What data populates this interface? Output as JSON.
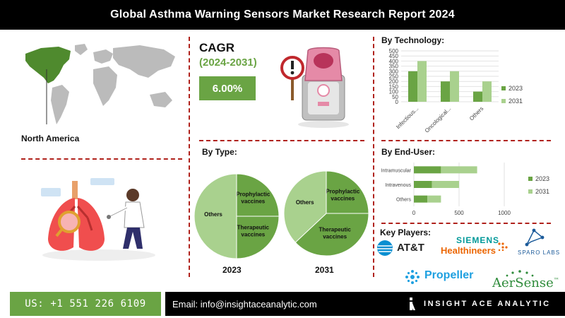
{
  "title": "Global  Asthma Warning Sensors Market Research Report 2024",
  "region": "North America",
  "cagr": {
    "label": "CAGR",
    "period": "(2024-2031)",
    "value": "6.00%"
  },
  "colors": {
    "dark_green": "#6aa444",
    "light_green": "#a9d18e",
    "accent_red": "#b0221c"
  },
  "chart_data": [
    {
      "type": "bar",
      "title": "By Technology:",
      "orientation": "vertical",
      "categories": [
        "Infectious...",
        "Oncological...",
        "Others"
      ],
      "series": [
        {
          "name": "2023",
          "values": [
            300,
            200,
            100
          ]
        },
        {
          "name": "2031",
          "values": [
            400,
            300,
            200
          ]
        }
      ],
      "yticks": [
        0,
        50,
        100,
        150,
        200,
        250,
        300,
        350,
        400,
        450,
        500
      ],
      "ylim": [
        0,
        500
      ],
      "legend": "right"
    },
    {
      "type": "bar",
      "title": "By End-User:",
      "orientation": "horizontal",
      "categories": [
        "Intramuscular",
        "Intravenous",
        "Others"
      ],
      "series": [
        {
          "name": "2023",
          "values": [
            300,
            200,
            150
          ]
        },
        {
          "name": "2031",
          "values": [
            700,
            500,
            300
          ]
        }
      ],
      "xticks": [
        0,
        500,
        1000
      ],
      "xlim": [
        0,
        1000
      ],
      "legend": "right"
    },
    {
      "type": "pie",
      "title": "By Type:",
      "pies": [
        {
          "label": "2023",
          "slices": [
            {
              "name": "Prophylactic vaccines",
              "value": 25
            },
            {
              "name": "Therapeutic vaccines",
              "value": 25
            },
            {
              "name": "Others",
              "value": 50
            }
          ]
        },
        {
          "label": "2031",
          "slices": [
            {
              "name": "Prophylactic vaccines",
              "value": 25
            },
            {
              "name": "Therapeutic vaccines",
              "value": 38
            },
            {
              "name": "Others",
              "value": 37
            }
          ]
        }
      ]
    }
  ],
  "key_players": {
    "title": "Key Players:",
    "logos": [
      {
        "name": "AT&T"
      },
      {
        "name": "SIEMENS",
        "sub": "Healthineers"
      },
      {
        "name": "SPARO LABS"
      },
      {
        "name": "Propeller"
      },
      {
        "name": "AerSense",
        "tm": "™"
      }
    ]
  },
  "footer": {
    "phone": "US: +1 551 226 6109",
    "email": "Email: info@insightaceanalytic.com",
    "brand": "INSIGHT ACE ANALYTIC"
  }
}
